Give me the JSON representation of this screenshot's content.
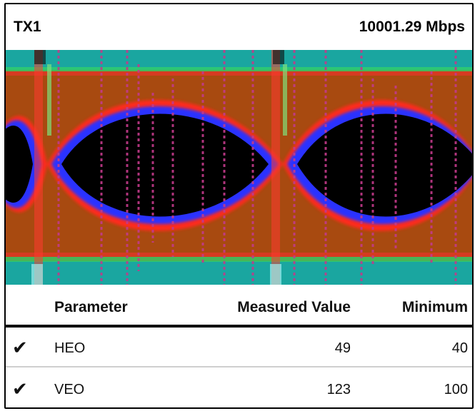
{
  "header": {
    "channel": "TX1",
    "rate": "10001.29 Mbps"
  },
  "colors": {
    "background": "#a84a10",
    "rails": "#1aa6a0",
    "eye_opening": "#000000",
    "inner_edge": "#2b33ff",
    "mid_band": "#ff2020"
  },
  "table": {
    "columns": [
      "Parameter",
      "Measured Value",
      "Minimum"
    ],
    "rows": [
      {
        "status_icon": "check-icon",
        "parameter": "HEO",
        "measured": "49",
        "minimum": "40"
      },
      {
        "status_icon": "check-icon",
        "parameter": "VEO",
        "measured": "123",
        "minimum": "100"
      }
    ]
  }
}
